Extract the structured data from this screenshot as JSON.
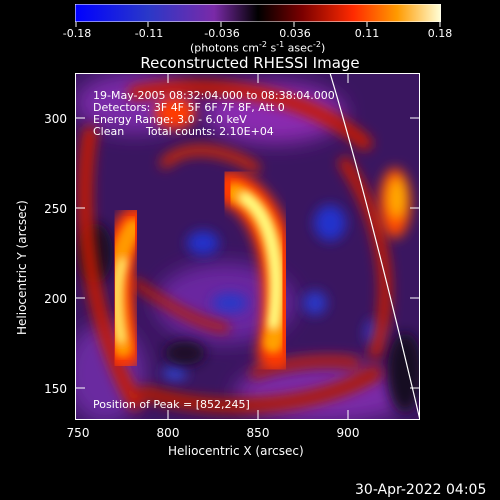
{
  "colorbar": {
    "ticks": [
      "-0.18",
      "-0.11",
      "-0.036",
      "0.036",
      "0.11",
      "0.18"
    ],
    "units_prefix": "(photons cm",
    "units_exp1": "-2",
    "units_mid": " s",
    "units_exp2": "-1",
    "units_mid2": " asec",
    "units_exp3": "-2",
    "units_suffix": ")"
  },
  "title": "Reconstructed RHESSI Image",
  "info": {
    "line1": "19-May-2005 08:32:04.000 to 08:38:04.000",
    "line2": "Detectors: 3F 4F 5F 6F 7F 8F, Att 0",
    "line3": "Energy Range: 3.0 - 6.0 keV",
    "line4_a": "Clean",
    "line4_b": "Total counts: 2.10E+04",
    "peak": "Position of Peak = [852,245]"
  },
  "axes": {
    "x_label": "Heliocentric X (arcsec)",
    "y_label": "Heliocentric Y (arcsec)",
    "x_ticks": [
      "750",
      "800",
      "850",
      "900"
    ],
    "y_ticks": [
      "300",
      "250",
      "200",
      "150"
    ]
  },
  "footer_timestamp": "30-Apr-2022 04:05",
  "colors": {
    "background": "#000000",
    "text": "#ffffff",
    "limb": "#ffffff"
  }
}
